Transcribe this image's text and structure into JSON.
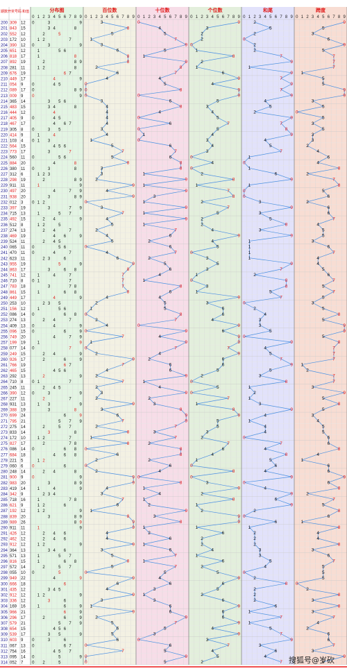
{
  "header": {
    "col_period": "期数",
    "col_number": "开奖号码",
    "col_sum": "和值",
    "sections": [
      "分布图",
      "百位数",
      "十位数",
      "个位数",
      "和尾",
      "跨度"
    ],
    "digits": [
      "0",
      "1",
      "2",
      "3",
      "4",
      "5",
      "6",
      "7",
      "8",
      "9"
    ]
  },
  "watermark": "搜狐号@岁砍",
  "colors": {
    "section_bgs": [
      "#e3f5e3",
      "#f3f1e3",
      "#f7dde8",
      "#e3efdc",
      "#e2e2fb",
      "#f8ddd3"
    ],
    "line": "#4a90e2",
    "title_red": "#e01818",
    "number_red": "#e01818",
    "number_blue": "#1818e0"
  },
  "chart_data": {
    "type": "table",
    "sections": [
      "分布图",
      "百位数",
      "十位数",
      "个位数",
      "和尾",
      "跨度"
    ],
    "rows": [
      {
        "period": "200",
        "number": "309",
        "sum": "12"
      },
      {
        "period": "201",
        "number": "843",
        "sum": "15"
      },
      {
        "period": "202",
        "number": "552",
        "sum": "12"
      },
      {
        "period": "203",
        "number": "172",
        "sum": "10"
      },
      {
        "period": "204",
        "number": "390",
        "sum": "12"
      },
      {
        "period": "205",
        "number": "651",
        "sum": "12"
      },
      {
        "period": "206",
        "number": "818",
        "sum": "17"
      },
      {
        "period": "207",
        "number": "892",
        "sum": "19"
      },
      {
        "period": "208",
        "number": "281",
        "sum": "11"
      },
      {
        "period": "209",
        "number": "676",
        "sum": "19"
      },
      {
        "period": "210",
        "number": "449",
        "sum": "17"
      },
      {
        "period": "211",
        "number": "054",
        "sum": "9"
      },
      {
        "period": "212",
        "number": "089",
        "sum": "17"
      },
      {
        "period": "213",
        "number": "009",
        "sum": "9"
      },
      {
        "period": "214",
        "number": "365",
        "sum": "14"
      },
      {
        "period": "215",
        "number": "483",
        "sum": "15"
      },
      {
        "period": "216",
        "number": "444",
        "sum": "12"
      },
      {
        "period": "217",
        "number": "405",
        "sum": "9"
      },
      {
        "period": "218",
        "number": "467",
        "sum": "17"
      },
      {
        "period": "219",
        "number": "305",
        "sum": "8"
      },
      {
        "period": "220",
        "number": "414",
        "sum": "9"
      },
      {
        "period": "221",
        "number": "103",
        "sum": "4"
      },
      {
        "period": "222",
        "number": "564",
        "sum": "15"
      },
      {
        "period": "223",
        "number": "773",
        "sum": "17"
      },
      {
        "period": "224",
        "number": "560",
        "sum": "11"
      },
      {
        "period": "225",
        "number": "884",
        "sum": "20"
      },
      {
        "period": "226",
        "number": "380",
        "sum": "11"
      },
      {
        "period": "227",
        "number": "312",
        "sum": "6"
      },
      {
        "period": "228",
        "number": "298",
        "sum": "19"
      },
      {
        "period": "229",
        "number": "911",
        "sum": "11"
      },
      {
        "period": "230",
        "number": "497",
        "sum": "20"
      },
      {
        "period": "231",
        "number": "938",
        "sum": "20"
      },
      {
        "period": "232",
        "number": "012",
        "sum": "3"
      },
      {
        "period": "233",
        "number": "397",
        "sum": "19"
      },
      {
        "period": "234",
        "number": "715",
        "sum": "13"
      },
      {
        "period": "235",
        "number": "492",
        "sum": "15"
      },
      {
        "period": "236",
        "number": "512",
        "sum": "8"
      },
      {
        "period": "237",
        "number": "274",
        "sum": "13"
      },
      {
        "period": "238",
        "number": "469",
        "sum": "19"
      },
      {
        "period": "239",
        "number": "524",
        "sum": "11"
      },
      {
        "period": "240",
        "number": "065",
        "sum": "11"
      },
      {
        "period": "241",
        "number": "470",
        "sum": "11"
      },
      {
        "period": "242",
        "number": "623",
        "sum": "11"
      },
      {
        "period": "243",
        "number": "955",
        "sum": "19"
      },
      {
        "period": "244",
        "number": "863",
        "sum": "17"
      },
      {
        "period": "245",
        "number": "741",
        "sum": "12"
      },
      {
        "period": "246",
        "number": "710",
        "sum": "8"
      },
      {
        "period": "247",
        "number": "783",
        "sum": "18"
      },
      {
        "period": "248",
        "number": "861",
        "sum": "15"
      },
      {
        "period": "249",
        "number": "449",
        "sum": "17"
      },
      {
        "period": "250",
        "number": "253",
        "sum": "10"
      },
      {
        "period": "251",
        "number": "156",
        "sum": "12"
      },
      {
        "period": "252",
        "number": "086",
        "sum": "14"
      },
      {
        "period": "253",
        "number": "274",
        "sum": "13"
      },
      {
        "period": "254",
        "number": "409",
        "sum": "13"
      },
      {
        "period": "255",
        "number": "096",
        "sum": "15"
      },
      {
        "period": "256",
        "number": "749",
        "sum": "20"
      },
      {
        "period": "257",
        "number": "199",
        "sum": "19"
      },
      {
        "period": "258",
        "number": "077",
        "sum": "14"
      },
      {
        "period": "259",
        "number": "249",
        "sum": "15"
      },
      {
        "period": "260",
        "number": "926",
        "sum": "17"
      },
      {
        "period": "261",
        "number": "766",
        "sum": "19"
      },
      {
        "period": "262",
        "number": "465",
        "sum": "15"
      },
      {
        "period": "263",
        "number": "292",
        "sum": "13"
      },
      {
        "period": "264",
        "number": "710",
        "sum": "8"
      },
      {
        "period": "265",
        "number": "245",
        "sum": "11"
      },
      {
        "period": "266",
        "number": "390",
        "sum": "12"
      },
      {
        "period": "267",
        "number": "227",
        "sum": "11"
      },
      {
        "period": "268",
        "number": "931",
        "sum": "13"
      },
      {
        "period": "269",
        "number": "388",
        "sum": "19"
      },
      {
        "period": "270",
        "number": "699",
        "sum": "24"
      },
      {
        "period": "271",
        "number": "795",
        "sum": "21"
      },
      {
        "period": "272",
        "number": "275",
        "sum": "14"
      },
      {
        "period": "273",
        "number": "833",
        "sum": "14"
      },
      {
        "period": "274",
        "number": "172",
        "sum": "10"
      },
      {
        "period": "275",
        "number": "827",
        "sum": "17"
      },
      {
        "period": "276",
        "number": "086",
        "sum": "14"
      },
      {
        "period": "277",
        "number": "684",
        "sum": "18"
      },
      {
        "period": "278",
        "number": "221",
        "sum": "5"
      },
      {
        "period": "279",
        "number": "060",
        "sum": "6"
      },
      {
        "period": "280",
        "number": "248",
        "sum": "14"
      },
      {
        "period": "281",
        "number": "900",
        "sum": "9"
      },
      {
        "period": "282",
        "number": "983",
        "sum": "20"
      },
      {
        "period": "283",
        "number": "419",
        "sum": "14"
      },
      {
        "period": "284",
        "number": "342",
        "sum": "9"
      },
      {
        "period": "285",
        "number": "718",
        "sub": "",
        "sum": "16"
      },
      {
        "period": "286",
        "number": "621",
        "sum": "9"
      },
      {
        "period": "287",
        "number": "192",
        "sum": "12"
      },
      {
        "period": "288",
        "number": "839",
        "sum": "20"
      },
      {
        "period": "289",
        "number": "989",
        "sum": "26"
      },
      {
        "period": "290",
        "number": "911",
        "sum": "11"
      },
      {
        "period": "291",
        "number": "426",
        "sum": "12"
      },
      {
        "period": "292",
        "number": "462",
        "sum": "12"
      },
      {
        "period": "293",
        "number": "912",
        "sum": "12"
      },
      {
        "period": "294",
        "number": "364",
        "sum": "13"
      },
      {
        "period": "295",
        "number": "571",
        "sum": "13"
      },
      {
        "period": "296",
        "number": "816",
        "sum": "15"
      },
      {
        "period": "297",
        "number": "572",
        "sum": "14"
      },
      {
        "period": "298",
        "number": "055",
        "sum": "10"
      },
      {
        "period": "299",
        "number": "949",
        "sum": "22"
      },
      {
        "period": "300",
        "number": "666",
        "sum": "18"
      },
      {
        "period": "301",
        "number": "435",
        "sum": "12"
      },
      {
        "period": "302",
        "number": "912",
        "sum": "12"
      },
      {
        "period": "303",
        "number": "336",
        "sum": "12"
      },
      {
        "period": "304",
        "number": "169",
        "sum": "16"
      },
      {
        "period": "305",
        "number": "966",
        "sum": "21"
      },
      {
        "period": "306",
        "number": "296",
        "sum": "17"
      },
      {
        "period": "307",
        "number": "579",
        "sum": "21"
      },
      {
        "period": "308",
        "number": "654",
        "sum": "15"
      },
      {
        "period": "309",
        "number": "539",
        "sum": "17"
      },
      {
        "period": "310",
        "number": "603",
        "sum": "9"
      },
      {
        "period": "311",
        "number": "067",
        "sum": "13"
      },
      {
        "period": "312",
        "number": "754",
        "sum": "16"
      },
      {
        "period": "313",
        "number": "095",
        "sum": "14"
      },
      {
        "period": "314",
        "number": "052",
        "sum": "7"
      }
    ]
  }
}
